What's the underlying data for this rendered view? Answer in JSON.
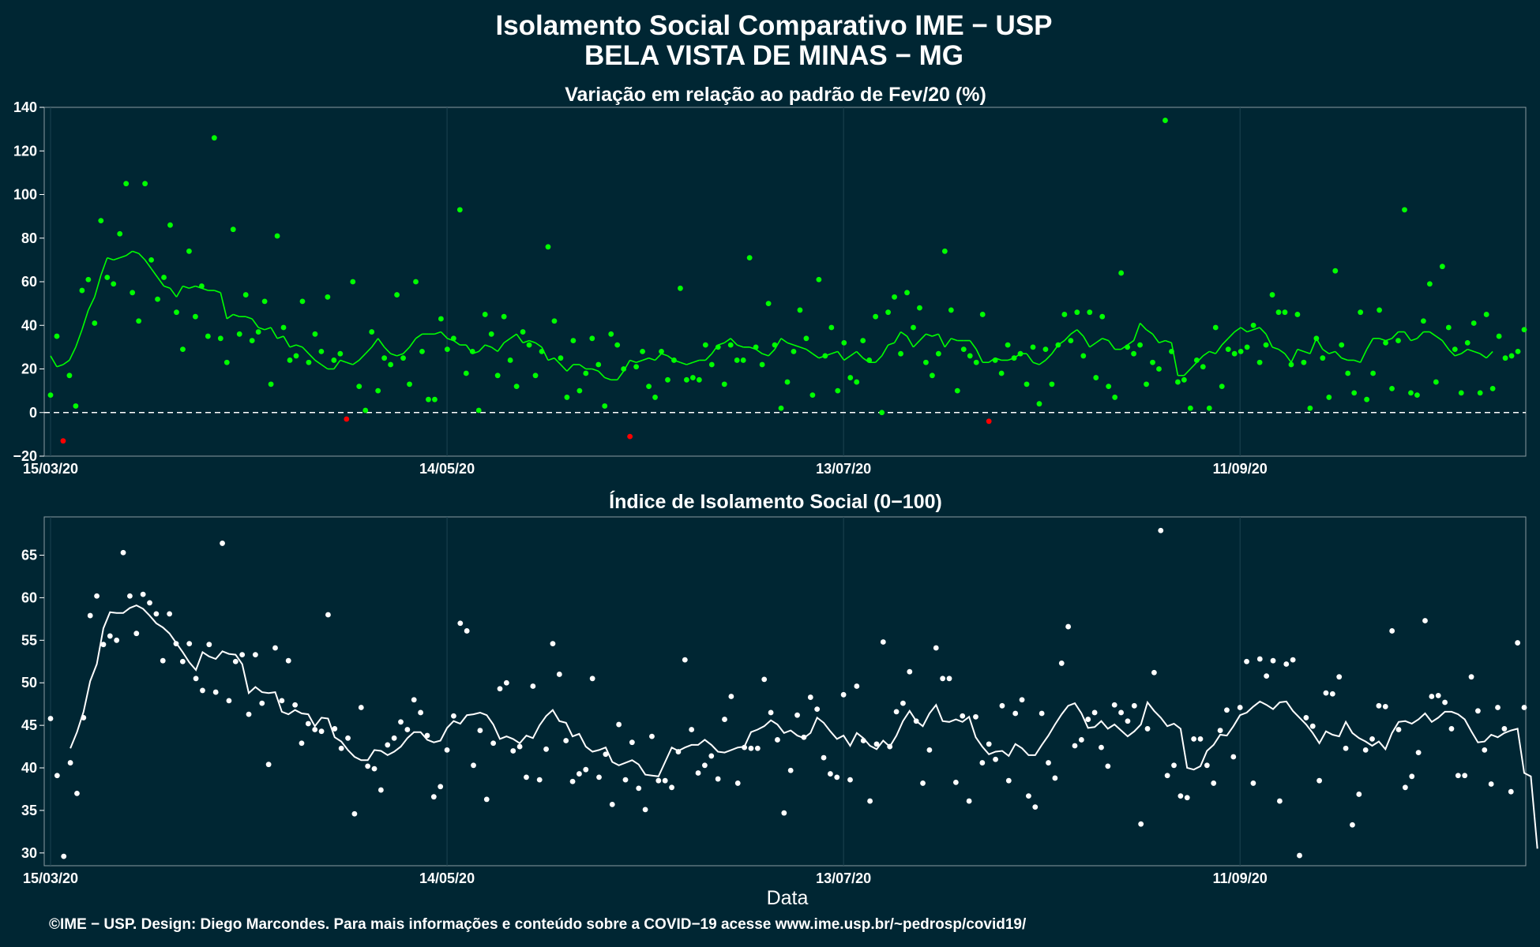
{
  "header": {
    "title": "Isolamento Social Comparativo IME − USP",
    "subtitle": "BELA VISTA DE MINAS − MG"
  },
  "xlabel": "Data",
  "footer": "©IME − USP. Design: Diego Marcondes. Para mais informações e conteúdo sobre a COVID−19 acesse www.ime.usp.br/~pedrosp/covid19/",
  "colors": {
    "background": "#002633",
    "positive": "#00ff00",
    "negative": "#ff0000",
    "index": "#ffffff",
    "grid": "#1c4350"
  },
  "chart_data": [
    {
      "type": "scatter",
      "title": "Variação em relação ao padrão de Fev/20 (%)",
      "x_start": "15/03/20",
      "x_end": "24/10/20",
      "x_ticks": [
        "15/03/20",
        "14/05/20",
        "13/07/20",
        "11/09/20"
      ],
      "y_ticks": [
        "−20",
        "0",
        "20",
        "40",
        "60",
        "80",
        "100",
        "120",
        "140"
      ],
      "ylim": [
        -20,
        140
      ],
      "reference_line": 0,
      "values": [
        8,
        35,
        -13,
        17,
        3,
        56,
        61,
        41,
        88,
        62,
        59,
        82,
        105,
        55,
        42,
        105,
        70,
        52,
        62,
        86,
        46,
        29,
        74,
        44,
        58,
        35,
        126,
        34,
        23,
        84,
        36,
        54,
        33,
        37,
        51,
        13,
        81,
        39,
        24,
        26,
        51,
        23,
        36,
        28,
        53,
        24,
        27,
        -3,
        60,
        12,
        1,
        37,
        10,
        25,
        22,
        54,
        25,
        13,
        60,
        28,
        6,
        6,
        43,
        29,
        34,
        93,
        18,
        28,
        1,
        45,
        36,
        17,
        44,
        24,
        12,
        37,
        31,
        17,
        28,
        76,
        42,
        25,
        7,
        33,
        10,
        18,
        34,
        22,
        3,
        36,
        31,
        20,
        -11,
        21,
        28,
        12,
        7,
        28,
        15,
        24,
        57,
        15,
        16,
        15,
        31,
        22,
        30,
        13,
        31,
        24,
        24,
        71,
        30,
        22,
        50,
        31,
        2,
        14,
        28,
        47,
        34,
        8,
        61,
        26,
        39,
        10,
        32,
        16,
        14,
        33,
        24,
        44,
        0,
        46,
        53,
        27,
        55,
        39,
        48,
        23,
        17,
        27,
        74,
        47,
        10,
        29,
        26,
        23,
        45,
        -4,
        24,
        18,
        31,
        25,
        27,
        13,
        30,
        4,
        29,
        13,
        31,
        45,
        33,
        46,
        26,
        46,
        16,
        44,
        12,
        7,
        64,
        30,
        27,
        31,
        13,
        23,
        20,
        134,
        28,
        14,
        15,
        2,
        24,
        21,
        2,
        39,
        12,
        29,
        27,
        28,
        30,
        40,
        23,
        31,
        54,
        46,
        46,
        22,
        45,
        23,
        2,
        34,
        25,
        7,
        65,
        31,
        18,
        9,
        46,
        6,
        18,
        47,
        32,
        11,
        33,
        93,
        9,
        8,
        42,
        59,
        14,
        67,
        39,
        29,
        9,
        32,
        41,
        9,
        45,
        11,
        35,
        25,
        26,
        28,
        38
      ],
      "moving_average": [
        26,
        21,
        22,
        24,
        30,
        38,
        47,
        53,
        63,
        71,
        70,
        71,
        72,
        74,
        73,
        70,
        66,
        62,
        58,
        57,
        53,
        58,
        57,
        58,
        57,
        56,
        56,
        55,
        43,
        45,
        44,
        44,
        43,
        39,
        38,
        39,
        34,
        35,
        30,
        31,
        30,
        27,
        24,
        22,
        20,
        20,
        24,
        23,
        22,
        24,
        27,
        30,
        34,
        30,
        27,
        26,
        27,
        30,
        34,
        36,
        36,
        36,
        37,
        34,
        33,
        31,
        31,
        27,
        28,
        31,
        30,
        28,
        32,
        34,
        36,
        32,
        33,
        32,
        30,
        24,
        25,
        22,
        19,
        22,
        22,
        20,
        20,
        19,
        16,
        15,
        15,
        19,
        24,
        23,
        24,
        25,
        24,
        27,
        26,
        24,
        23,
        22,
        23,
        24,
        24,
        27,
        31,
        32,
        34,
        31,
        30,
        30,
        29,
        27,
        26,
        29,
        34,
        32,
        31,
        30,
        29,
        27,
        25,
        26,
        27,
        28,
        24,
        26,
        28,
        25,
        23,
        23,
        26,
        31,
        32,
        37,
        35,
        30,
        33,
        36,
        35,
        36,
        30,
        34,
        33,
        33,
        33,
        29,
        23,
        23,
        25,
        24,
        24,
        25,
        27,
        27,
        23,
        22,
        24,
        27,
        31,
        33,
        36,
        38,
        35,
        30,
        32,
        34,
        33,
        29,
        29,
        31,
        33,
        41,
        38,
        36,
        32,
        33,
        32,
        17,
        17,
        20,
        23,
        26,
        28,
        27,
        31,
        34,
        37,
        39,
        37,
        38,
        39,
        36,
        30,
        29,
        27,
        23,
        29,
        28,
        27,
        34,
        29,
        27,
        28,
        25,
        24,
        24,
        23,
        29,
        34,
        34,
        33,
        34,
        37,
        37,
        33,
        34,
        37,
        37,
        35,
        33,
        29,
        26,
        27,
        29,
        28,
        27,
        25,
        28
      ]
    },
    {
      "type": "scatter",
      "title": "Índice de Isolamento Social (0−100)",
      "x_start": "15/03/20",
      "x_end": "24/10/20",
      "x_ticks": [
        "15/03/20",
        "14/05/20",
        "13/07/20",
        "11/09/20"
      ],
      "y_ticks": [
        "30",
        "35",
        "40",
        "45",
        "50",
        "55",
        "60",
        "65"
      ],
      "ylim": [
        28.5,
        69.5
      ],
      "values": [
        45.8,
        39.1,
        29.6,
        40.6,
        37,
        45.9,
        57.9,
        60.2,
        54.5,
        55.5,
        55,
        65.3,
        60.2,
        55.8,
        60.4,
        59.4,
        58.1,
        52.6,
        58.1,
        54.6,
        52.5,
        54.6,
        50.5,
        49.1,
        54.5,
        48.9,
        66.4,
        47.9,
        52.5,
        53.3,
        46.3,
        53.3,
        47.6,
        40.4,
        54.1,
        47.9,
        52.6,
        47.4,
        42.9,
        45.2,
        44.5,
        44.3,
        58,
        44.6,
        42.3,
        43.5,
        34.6,
        47.1,
        40.2,
        39.9,
        37.4,
        42.7,
        43.5,
        45.4,
        44.5,
        48,
        46.5,
        43.8,
        36.6,
        37.8,
        42.1,
        46.1,
        57,
        56.1,
        40.3,
        44.4,
        36.3,
        42.9,
        49.3,
        50,
        42,
        42.5,
        38.9,
        49.6,
        38.6,
        42.2,
        54.6,
        51,
        43.2,
        38.4,
        39.3,
        39.8,
        50.5,
        38.9,
        41.6,
        35.7,
        45.1,
        38.6,
        43,
        37.6,
        35.1,
        43.7,
        38.5,
        38.5,
        37.7,
        41.9,
        52.7,
        44.5,
        39.4,
        40.3,
        41.4,
        38.7,
        45.7,
        48.4,
        38.2,
        42.4,
        42.3,
        42.3,
        50.4,
        46.5,
        43.3,
        34.7,
        39.7,
        46.2,
        43.6,
        48.3,
        46.9,
        41.2,
        39.3,
        38.9,
        48.6,
        38.6,
        49.6,
        43.2,
        36.1,
        42.8,
        54.8,
        42.5,
        46.6,
        47.6,
        51.3,
        45.5,
        38.2,
        42.1,
        54.1,
        50.5,
        50.5,
        38.3,
        46.1,
        36.1,
        46,
        40.6,
        42.8,
        41,
        47.3,
        38.5,
        46.4,
        48,
        36.7,
        35.4,
        46.4,
        40.6,
        38.8,
        52.3,
        56.6,
        42.6,
        43.3,
        45.7,
        46.5,
        42.4,
        40.2,
        47.4,
        46.5,
        45.5,
        47.3,
        33.4,
        44.6,
        51.2,
        67.9,
        39.1,
        40.3,
        36.7,
        36.5,
        43.4,
        43.4,
        40.3,
        38.2,
        44.4,
        46.8,
        41.3,
        47.1,
        52.5,
        38.2,
        52.8,
        50.8,
        52.6,
        36.1,
        52.2,
        52.7,
        29.7,
        45.9,
        44.9,
        38.5,
        48.8,
        48.7,
        50.7,
        42.3,
        33.3,
        36.9,
        42.1,
        43.4,
        47.3,
        47.2,
        56.1,
        44.5,
        37.7,
        39,
        41.8,
        57.3,
        48.4,
        48.5,
        47.7,
        44.6,
        39.1,
        39.1,
        50.7,
        46.7,
        42.1,
        38.1,
        47.1,
        44.6,
        37.2,
        54.7,
        47.1
      ],
      "moving_average": [
        null,
        null,
        null,
        42.3,
        44.2,
        46.6,
        50.2,
        52.2,
        56.4,
        58.3,
        58.2,
        58.2,
        58.8,
        59.1,
        58.7,
        57.9,
        57,
        56.5,
        55.8,
        54.7,
        53.6,
        52.4,
        51.5,
        53.6,
        53.1,
        52.8,
        53.7,
        53.4,
        53.3,
        52.2,
        48.8,
        49.5,
        48.9,
        48.8,
        48.9,
        46.6,
        46.3,
        46.8,
        46.4,
        46.3,
        44.9,
        45.9,
        45.8,
        43.6,
        43.1,
        42.1,
        41.3,
        40.9,
        40.9,
        42.1,
        42,
        41.5,
        41.9,
        42.5,
        43.5,
        44.2,
        44.2,
        43.3,
        43,
        43.2,
        44.7,
        45.5,
        45.2,
        46.2,
        46.3,
        46.5,
        46.2,
        45.1,
        43.4,
        43.7,
        43.4,
        42.9,
        43.8,
        43.5,
        45,
        46.1,
        46.8,
        45.5,
        45.3,
        43.7,
        44,
        42.5,
        41.9,
        42.1,
        42.4,
        40.7,
        40.3,
        40.6,
        40.9,
        40.4,
        39.2,
        39.1,
        39,
        40.7,
        42.4,
        42,
        42.4,
        42.7,
        42.7,
        43.3,
        42.7,
        41.9,
        41.8,
        42.1,
        42.4,
        42.5,
        44.2,
        44.5,
        44.9,
        45.6,
        45.1,
        44.1,
        44.4,
        43.8,
        43.5,
        44.1,
        45.9,
        45.3,
        44.3,
        43.4,
        43.8,
        42.6,
        44.1,
        43.5,
        42.6,
        42.2,
        43.2,
        42.5,
        43.8,
        45.5,
        46.7,
        45.5,
        44.9,
        46.4,
        47.4,
        45.5,
        45.4,
        45.7,
        45.4,
        46,
        43.6,
        42.5,
        41.6,
        41.9,
        42,
        41.4,
        42.8,
        42.3,
        41.5,
        41.5,
        42.7,
        43.8,
        45.1,
        46.3,
        47.3,
        47.6,
        46.4,
        44.7,
        44.8,
        45.5,
        44.6,
        45.1,
        44.4,
        43.7,
        44.3,
        45.1,
        47.7,
        46.7,
        45.9,
        44.9,
        45.2,
        44.6,
        40,
        39.8,
        40.2,
        42,
        42.7,
        43.9,
        43.8,
        44.9,
        46.2,
        46.5,
        47.2,
        47.8,
        47.4,
        46.9,
        47.7,
        47.8,
        46.7,
        45.9,
        45.1,
        44.1,
        42.9,
        44.3,
        43.9,
        43.7,
        45.4,
        44.1,
        43.5,
        43.1,
        42.6,
        43.1,
        42.2,
        44.1,
        45.4,
        45.5,
        45.2,
        45.7,
        46.4,
        45.4,
        45.9,
        46.6,
        46.6,
        46.3,
        45.7,
        44.3,
        43,
        43.1,
        43.9,
        43.6,
        44.1,
        44.4,
        44.6,
        39.4,
        39,
        30.5
      ]
    }
  ]
}
